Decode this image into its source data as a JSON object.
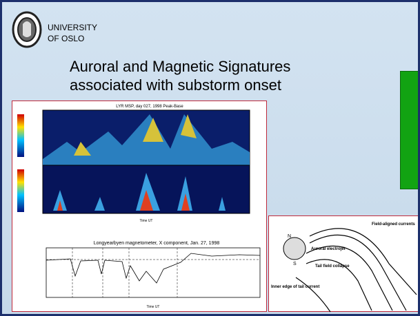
{
  "header": {
    "institution_line1": "UNIVERSITY",
    "institution_line2": "OF OSLO"
  },
  "slide": {
    "title_line1": "Auroral and Magnetic Signatures",
    "title_line2": "associated with substorm onset"
  },
  "figure_left": {
    "msp_title": "LYR MSP, day 027, 1998 Peak-Base",
    "msp_xlabel": "Time UT",
    "magnetometer_title": "Longyearbyen magnetometer, X component, Jan. 27, 1998",
    "magnetometer_xlabel": "Time UT"
  },
  "figure_right": {
    "label_n": "N",
    "label_s": "S",
    "label_field_aligned": "Field-aligned currents",
    "label_electrojet": "Auroral electrojet",
    "label_tail_collapse": "Tail field collapse",
    "label_inner_edge": "Inner edge of tail current"
  }
}
